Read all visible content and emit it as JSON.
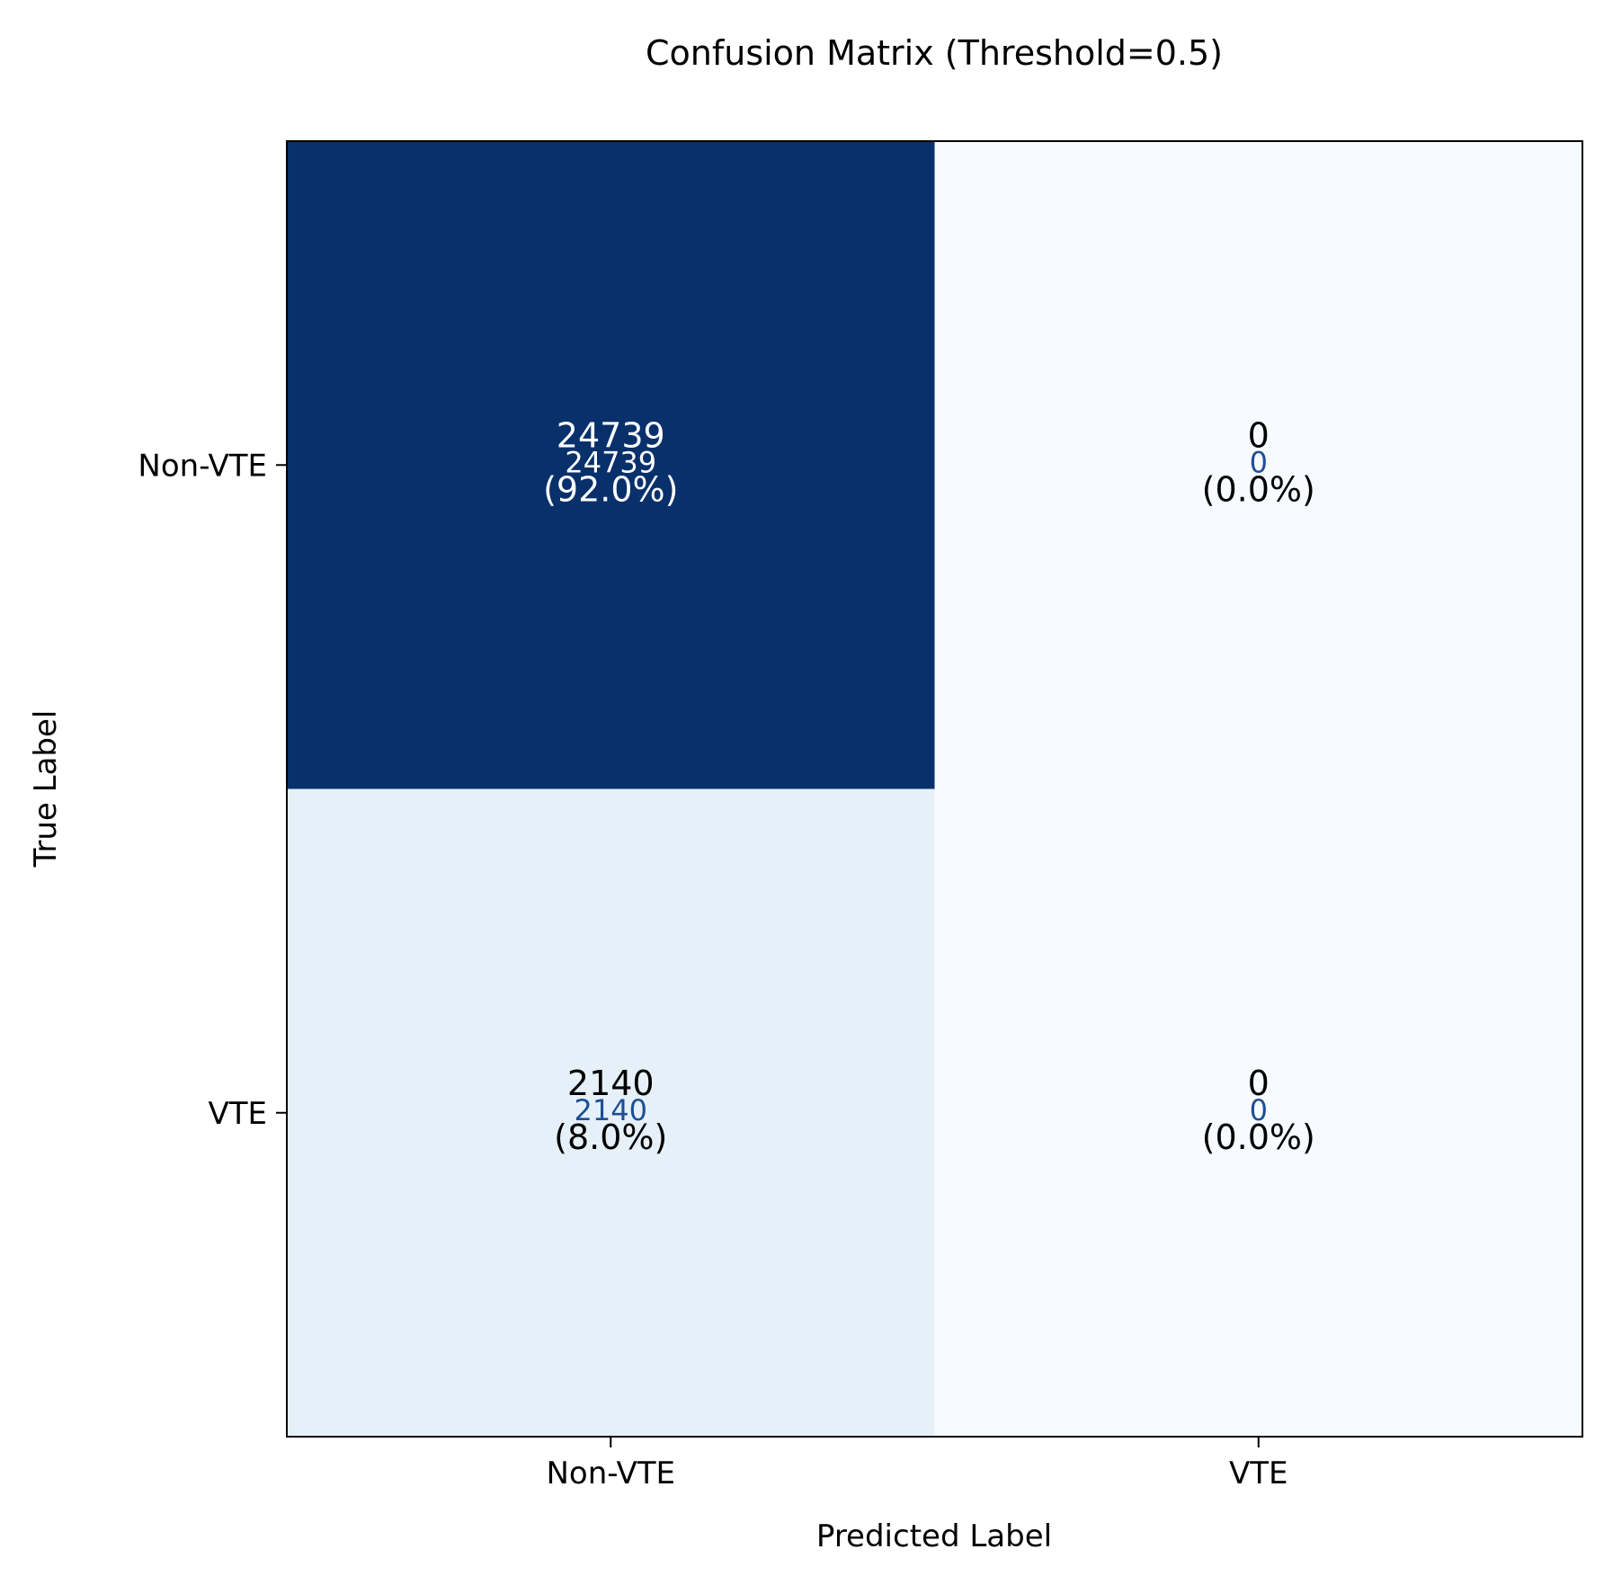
{
  "chart_data": {
    "type": "heatmap",
    "title": "Confusion Matrix (Threshold=0.5)",
    "xlabel": "Predicted Label",
    "ylabel": "True Label",
    "x_categories": [
      "Non-VTE",
      "VTE"
    ],
    "y_categories": [
      "Non-VTE",
      "VTE"
    ],
    "colormap": "Blues",
    "colors": {
      "cell_high": "#08306b",
      "cell_low": "#f7fbff",
      "text_on_dark": "#ffffff",
      "text_on_light": "#000000",
      "overlay_text": "#1e4f96"
    },
    "cells": [
      [
        {
          "count": 24739,
          "count_label": "24739",
          "percent": 92.0,
          "percent_label": "(92.0%)",
          "overlay_label": "24739"
        },
        {
          "count": 0,
          "count_label": "0",
          "percent": 0.0,
          "percent_label": "(0.0%)",
          "overlay_label": "0"
        }
      ],
      [
        {
          "count": 2140,
          "count_label": "2140",
          "percent": 8.0,
          "percent_label": "(8.0%)",
          "overlay_label": "2140"
        },
        {
          "count": 0,
          "count_label": "0",
          "percent": 0.0,
          "percent_label": "(0.0%)",
          "overlay_label": "0"
        }
      ]
    ]
  }
}
